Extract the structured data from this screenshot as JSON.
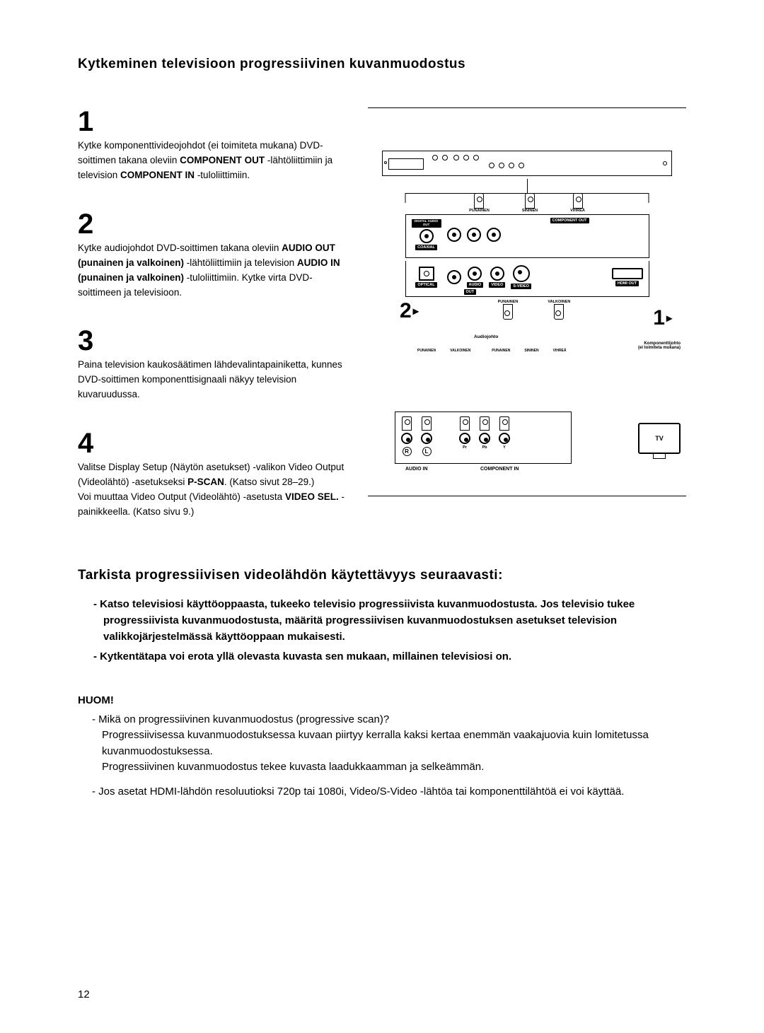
{
  "title": "Kytkeminen televisioon progressiivinen kuvanmuodostus",
  "steps": [
    {
      "num": "1",
      "html": "Kytke komponenttivideojohdot (ei toimiteta mukana) DVD-soittimen takana oleviin <b>COMPONENT OUT</b> -lähtöliittimiin ja television <b>COMPONENT IN</b> -tuloliittimiin."
    },
    {
      "num": "2",
      "html": "Kytke audiojohdot DVD-soittimen takana oleviin <b>AUDIO OUT (punainen ja valkoinen)</b> -lähtöliittimiin ja television <b>AUDIO IN (punainen ja valkoinen)</b> -tuloliittimiin. Kytke virta DVD-soittimeen ja televisioon."
    },
    {
      "num": "3",
      "html": "Paina television kaukosäätimen lähdevalintapainiketta, kunnes DVD-soittimen komponenttisignaali näkyy television kuvaruudussa."
    },
    {
      "num": "4",
      "html": "Valitse Display Setup (Näytön asetukset) -valikon Video Output (Videolähtö) -asetukseksi <b>P-SCAN</b>. (Katso sivut 28–29.)<br>Voi muuttaa Video Output (Videolähtö) -asetusta <b>VIDEO SEL.</b> -painikkeella. (Katso sivu 9.)"
    }
  ],
  "subheading": "Tarkista progressiivisen videolähdön käytettävyys seuraavasti:",
  "check_items": [
    "Katso televisiosi käyttöoppaasta, tukeeko televisio progressiivista kuvanmuodostusta. Jos televisio tukee progressiivista kuvanmuodostusta, määritä progressiivisen kuvanmuodostuksen asetukset television valikkojärjestelmässä käyttöoppaan mukaisesti.",
    "Kytkentätapa voi erota yllä olevasta kuvasta sen mukaan, millainen televisiosi on."
  ],
  "note_head": "HUOM!",
  "notes": [
    "Mikä on progressiivinen kuvanmuodostus (progressive scan)?\nProgressiivisessa kuvanmuodostuksessa kuvaan piirtyy kerralla kaksi kertaa enemmän vaakajuovia kuin lomitetussa kuvanmuodostuksessa.\nProgressiivinen kuvanmuodostus tekee kuvasta laadukkaamman ja selkeämmän.",
    "Jos asetat HDMI-lähdön resoluutioksi 720p tai 1080i, Video/S-Video -lähtöa tai komponenttilähtöä ei voi käyttää."
  ],
  "page_number": "12",
  "diagram": {
    "component_colors": [
      "PUNAINEN",
      "SININEN",
      "VIHREÄ"
    ],
    "panel_labels": {
      "digital_audio": "DIGITAL AUDIO OUT",
      "coaxial": "COAXIAL",
      "component_out": "COMPONENT OUT",
      "optical": "OPTICAL",
      "audio": "AUDIO",
      "out": "OUT",
      "video": "VIDEO",
      "svideo": "S-VIDEO",
      "hdmi": "HDMI OUT"
    },
    "audio_colors": [
      "PUNAINEN",
      "VALKOINEN"
    ],
    "audiocable": "Audiojohto",
    "componentcable": "Komponenttijohto",
    "componentcable_sub": "(ei toimiteta mukana)",
    "tv_label": "TV",
    "tv_jacks": {
      "audio_in": "AUDIO IN",
      "component_in": "COMPONENT IN",
      "r": "R",
      "l": "L",
      "pr": "Pr",
      "pb": "Pb",
      "y": "Y"
    },
    "lower_colors": [
      "PUNAINEN",
      "VALKOINEN",
      "PUNAINEN",
      "SININEN",
      "VIHREÄ"
    ],
    "callout1": "1",
    "callout2": "2"
  }
}
